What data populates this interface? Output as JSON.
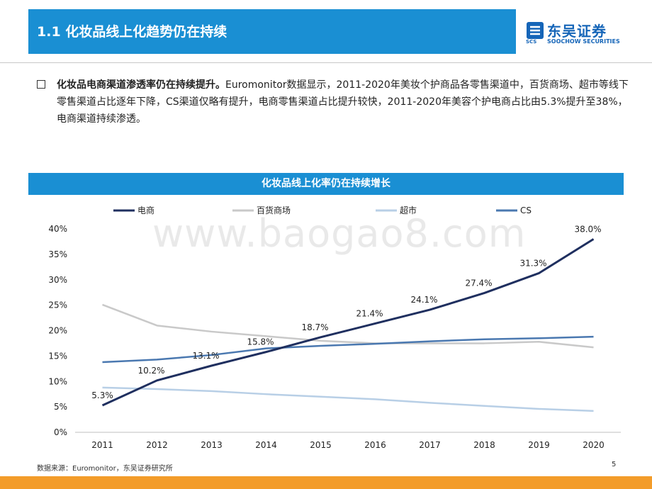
{
  "header": {
    "title": "1.1 化妆品线上化趋势仍在持续",
    "logo_cn": "东吴证券",
    "logo_en": "SOOCHOW SECURITIES",
    "logo_abbr": "SCS"
  },
  "body": {
    "bold_lead": "化妆品电商渠道渗透率仍在持续提升。",
    "text": "Euromonitor数据显示，2011-2020年美妆个护商品各零售渠道中，百货商场、超市等线下零售渠道占比逐年下降，CS渠道仅略有提升，电商零售渠道占比提升较快，2011-2020年美容个护电商占比由5.3%提升至38%，电商渠道持续渗透。"
  },
  "watermark": "www.baogao8.com",
  "chart_data": {
    "type": "line",
    "title": "化妆品线上化率仍在持续增长",
    "categories": [
      "2011",
      "2012",
      "2013",
      "2014",
      "2015",
      "2016",
      "2017",
      "2018",
      "2019",
      "2020"
    ],
    "ylim": [
      0,
      40
    ],
    "yticks": [
      "0%",
      "5%",
      "10%",
      "15%",
      "20%",
      "25%",
      "30%",
      "35%",
      "40%"
    ],
    "legend_position": "top",
    "series": [
      {
        "name": "电商",
        "color": "#1f2f5f",
        "values": [
          5.3,
          10.2,
          13.1,
          15.8,
          18.7,
          21.4,
          24.1,
          27.4,
          31.3,
          38.0
        ],
        "labels": [
          "5.3%",
          "10.2%",
          "13.1%",
          "15.8%",
          "18.7%",
          "21.4%",
          "24.1%",
          "27.4%",
          "31.3%",
          "38.0%"
        ]
      },
      {
        "name": "百货商场",
        "color": "#c9c9c9",
        "values": [
          25.1,
          21.0,
          19.8,
          18.9,
          18.0,
          17.5,
          17.5,
          17.5,
          17.8,
          16.7
        ]
      },
      {
        "name": "超市",
        "color": "#b8cfe6",
        "values": [
          8.8,
          8.5,
          8.1,
          7.5,
          7.0,
          6.5,
          5.8,
          5.2,
          4.6,
          4.2
        ]
      },
      {
        "name": "CS",
        "color": "#4a78b0",
        "values": [
          13.8,
          14.3,
          15.2,
          16.5,
          17.0,
          17.4,
          17.9,
          18.3,
          18.5,
          18.8
        ]
      }
    ]
  },
  "footer": {
    "source": "数据来源：Euromonitor，东吴证券研究所",
    "page": "5"
  }
}
